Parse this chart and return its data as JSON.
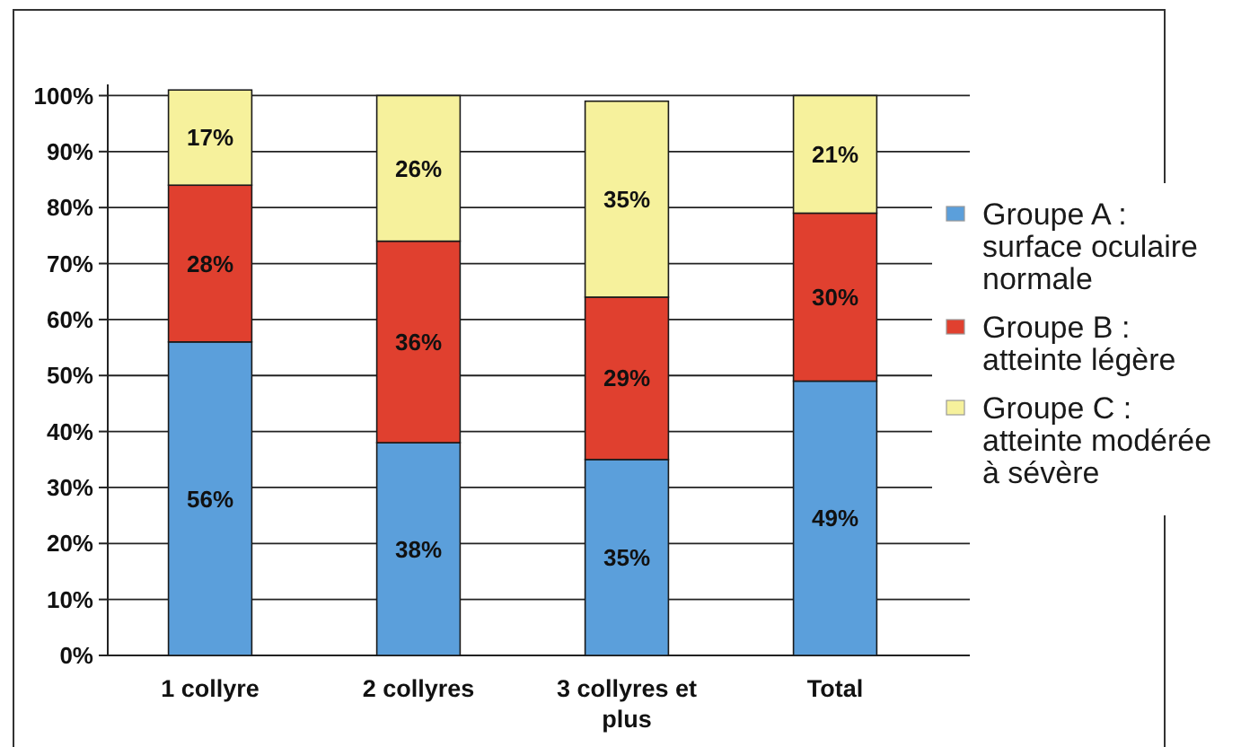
{
  "chart_data": {
    "type": "bar",
    "stacked": true,
    "categories": [
      "1 collyre",
      "2 collyres",
      "3 collyres et plus",
      "Total"
    ],
    "series": [
      {
        "name": "Groupe A : surface oculaire normale",
        "color": "#5b9fdb",
        "values": [
          56,
          38,
          35,
          49
        ],
        "value_labels": [
          "56%",
          "38%",
          "35%",
          "49%"
        ]
      },
      {
        "name": "Groupe B : atteinte légère",
        "color": "#e0402f",
        "values": [
          28,
          36,
          29,
          30
        ],
        "value_labels": [
          "28%",
          "36%",
          "29%",
          "30%"
        ]
      },
      {
        "name": "Groupe C : atteinte modérée à sévère",
        "color": "#f6f19c",
        "values": [
          17,
          26,
          35,
          21
        ],
        "value_labels": [
          "17%",
          "26%",
          "35%",
          "21%"
        ]
      }
    ],
    "ylim": [
      0,
      102
    ],
    "yticks": [
      {
        "value": 0,
        "label": "0%"
      },
      {
        "value": 10,
        "label": "10%"
      },
      {
        "value": 20,
        "label": "20%"
      },
      {
        "value": 30,
        "label": "30%"
      },
      {
        "value": 40,
        "label": "40%"
      },
      {
        "value": 50,
        "label": "50%"
      },
      {
        "value": 60,
        "label": "60%"
      },
      {
        "value": 70,
        "label": "70%"
      },
      {
        "value": 80,
        "label": "80%"
      },
      {
        "value": 90,
        "label": "90%"
      },
      {
        "value": 100,
        "label": "100%"
      }
    ],
    "grid": "y",
    "legend": "right"
  }
}
